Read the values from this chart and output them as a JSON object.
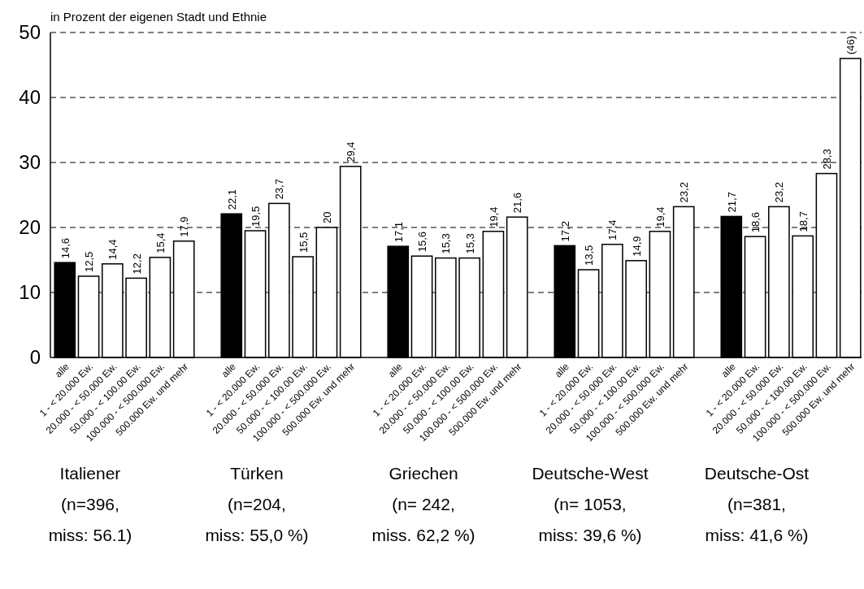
{
  "chart_data": {
    "type": "bar",
    "title": "in Prozent der eigenen Stadt und Ethnie",
    "categories": [
      "alle",
      "1 - < 20.000 Ew.",
      "20.000 - < 50.000 Ew.",
      "50.000 - < 100.00 Ew.",
      "100.000 - < 500.000 Ew.",
      "500.000 Ew. und mehr",
      null,
      "alle",
      "1 - < 20.000 Ew.",
      "20.000 - < 50.000 Ew.",
      "50.000 - < 100.00 Ew.",
      "100.000 - < 500.000 Ew.",
      "500.000 Ew. und mehr",
      null,
      "alle",
      "1 - < 20.000 Ew.",
      "20.000 - < 50.000 Ew.",
      "50.000 - < 100.00 Ew.",
      "100.000 - < 500.000 Ew.",
      "500.000 Ew. und mehr",
      null,
      "alle",
      "1 - < 20.000 Ew.",
      "20.000 - < 50.000 Ew.",
      "50.000 - < 100.00 Ew.",
      "100.000 - < 500.000 Ew.",
      "500.000 Ew. und mehr",
      null,
      "alle",
      "1 - < 20.000 Ew.",
      "20.000 - < 50.000 Ew.",
      "50.000 - < 100.00 Ew.",
      "100.000 - < 500.000 Ew.",
      "500.000 Ew. und mehr"
    ],
    "values": [
      14.6,
      12.5,
      14.4,
      12.2,
      15.4,
      17.9,
      null,
      22.1,
      19.5,
      23.7,
      15.5,
      20,
      29.4,
      null,
      17.1,
      15.6,
      15.3,
      15.3,
      19.4,
      21.6,
      null,
      17.2,
      13.5,
      17.4,
      14.9,
      19.4,
      23.2,
      null,
      21.7,
      18.6,
      23.2,
      18.7,
      28.3,
      46
    ],
    "colors": [
      "#000000",
      "#ffffff",
      "#ffffff",
      "#ffffff",
      "#ffffff",
      "#ffffff",
      null,
      "#000000",
      "#ffffff",
      "#ffffff",
      "#ffffff",
      "#ffffff",
      "#ffffff",
      null,
      "#000000",
      "#ffffff",
      "#ffffff",
      "#ffffff",
      "#ffffff",
      "#ffffff",
      null,
      "#000000",
      "#ffffff",
      "#ffffff",
      "#ffffff",
      "#ffffff",
      "#ffffff",
      null,
      "#000000",
      "#ffffff",
      "#ffffff",
      "#ffffff",
      "#ffffff",
      "#ffffff"
    ],
    "value_labels": [
      "14,6",
      "12,5",
      "14,4",
      "12,2",
      "15,4",
      "17,9",
      null,
      "22,1",
      "19,5",
      "23,7",
      "15,5",
      "20",
      "29,4",
      null,
      "17,1",
      "15,6",
      "15,3",
      "15,3",
      "19,4",
      "21,6",
      null,
      "17,2",
      "13,5",
      "17,4",
      "14,9",
      "19,4",
      "23,2",
      null,
      "21,7",
      "18,6",
      "23,2",
      "18,7",
      "28,3",
      "(46)"
    ],
    "ylim": [
      0,
      50
    ],
    "yticks": [
      0,
      10,
      20,
      30,
      40,
      50
    ],
    "grid": "y",
    "annotations": [
      "Italiener\n(n=396,\nmiss: 56.1)",
      "Türken\n(n=204,\nmiss: 55,0 %)",
      "Griechen\n(n= 242,\nmiss. 62,2 %)",
      "Deutsche-West\n(n= 1053,\nmiss: 39,6 %)",
      "Deutsche-Ost\n(n=381,\nmiss: 41,6 %)"
    ]
  }
}
